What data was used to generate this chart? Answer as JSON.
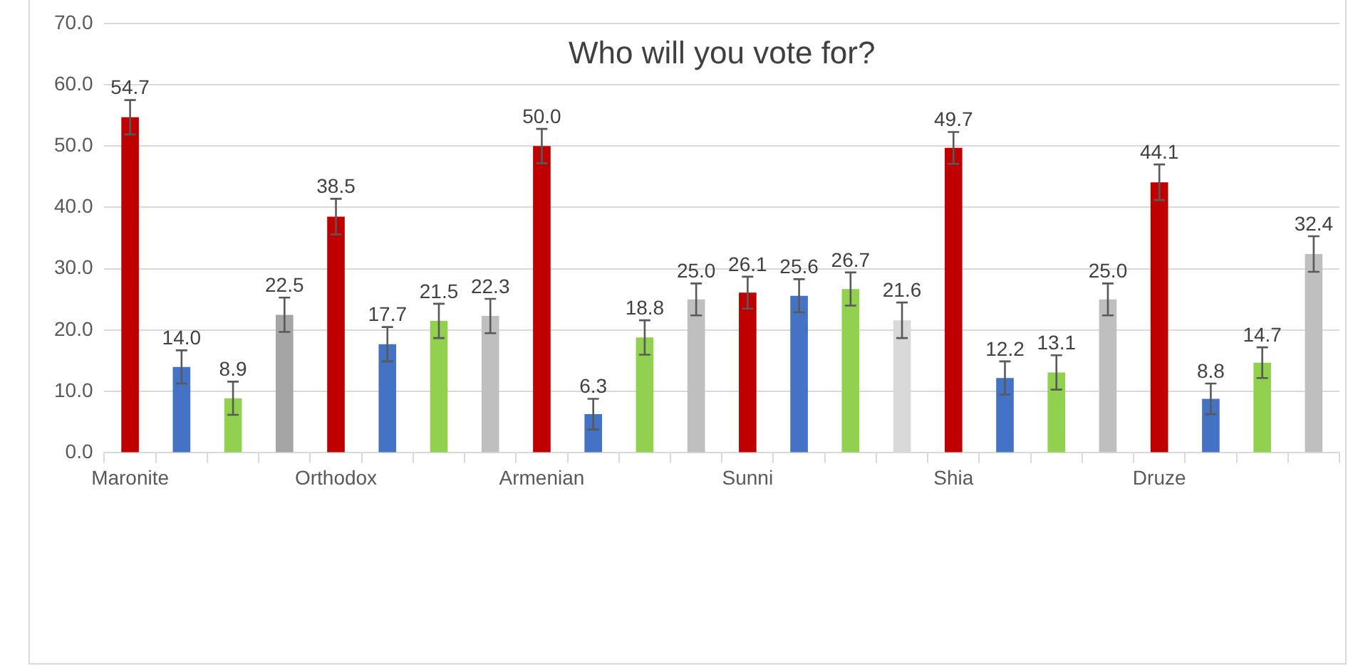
{
  "chart_data": {
    "type": "bar",
    "title": "Who will you vote for?",
    "categories": [
      "Maronite",
      null,
      null,
      null,
      "Orthodox",
      null,
      null,
      null,
      "Armenian",
      null,
      null,
      null,
      "Sunni",
      null,
      null,
      null,
      "Shia",
      null,
      null,
      null,
      "Druze",
      null,
      null,
      null
    ],
    "values": [
      54.7,
      14.0,
      8.9,
      22.5,
      38.5,
      17.7,
      21.5,
      22.3,
      50.0,
      6.3,
      18.8,
      25.0,
      26.1,
      25.6,
      26.7,
      21.6,
      49.7,
      12.2,
      13.1,
      25.0,
      44.1,
      8.8,
      14.7,
      32.4
    ],
    "colors": [
      "#c00000",
      "#4472c4",
      "#92d050",
      "#a5a5a5",
      "#c00000",
      "#4472c4",
      "#92d050",
      "#bfbfbf",
      "#c00000",
      "#4472c4",
      "#92d050",
      "#bfbfbf",
      "#c00000",
      "#4472c4",
      "#92d050",
      "#d9d9d9",
      "#c00000",
      "#4472c4",
      "#92d050",
      "#bfbfbf",
      "#c00000",
      "#4472c4",
      "#92d050",
      "#bfbfbf"
    ],
    "errors": [
      2.8,
      2.7,
      2.7,
      2.8,
      2.9,
      2.8,
      2.8,
      2.8,
      2.8,
      2.5,
      2.8,
      2.6,
      2.6,
      2.7,
      2.7,
      2.9,
      2.6,
      2.7,
      2.8,
      2.6,
      2.9,
      2.5,
      2.5,
      2.9
    ],
    "value_labels": [
      "54.7",
      "14.0",
      "8.9",
      "22.5",
      "38.5",
      "17.7",
      "21.5",
      "22.3",
      "50.0",
      "6.3",
      "18.8",
      "25.0",
      "26.1",
      "25.6",
      "26.7",
      "21.6",
      "49.7",
      "12.2",
      "13.1",
      "25.0",
      "44.1",
      "8.8",
      "14.7",
      "32.4"
    ],
    "ylim": [
      0,
      70
    ],
    "yticks": [
      {
        "value": 0,
        "label": "0.0"
      },
      {
        "value": 10,
        "label": "10.0"
      },
      {
        "value": 20,
        "label": "20.0"
      },
      {
        "value": 30,
        "label": "30.0"
      },
      {
        "value": 40,
        "label": "40.0"
      },
      {
        "value": 50,
        "label": "50.0"
      },
      {
        "value": 60,
        "label": "60.0"
      },
      {
        "value": 70,
        "label": "70.0"
      }
    ],
    "grid": "y",
    "legend": false
  }
}
